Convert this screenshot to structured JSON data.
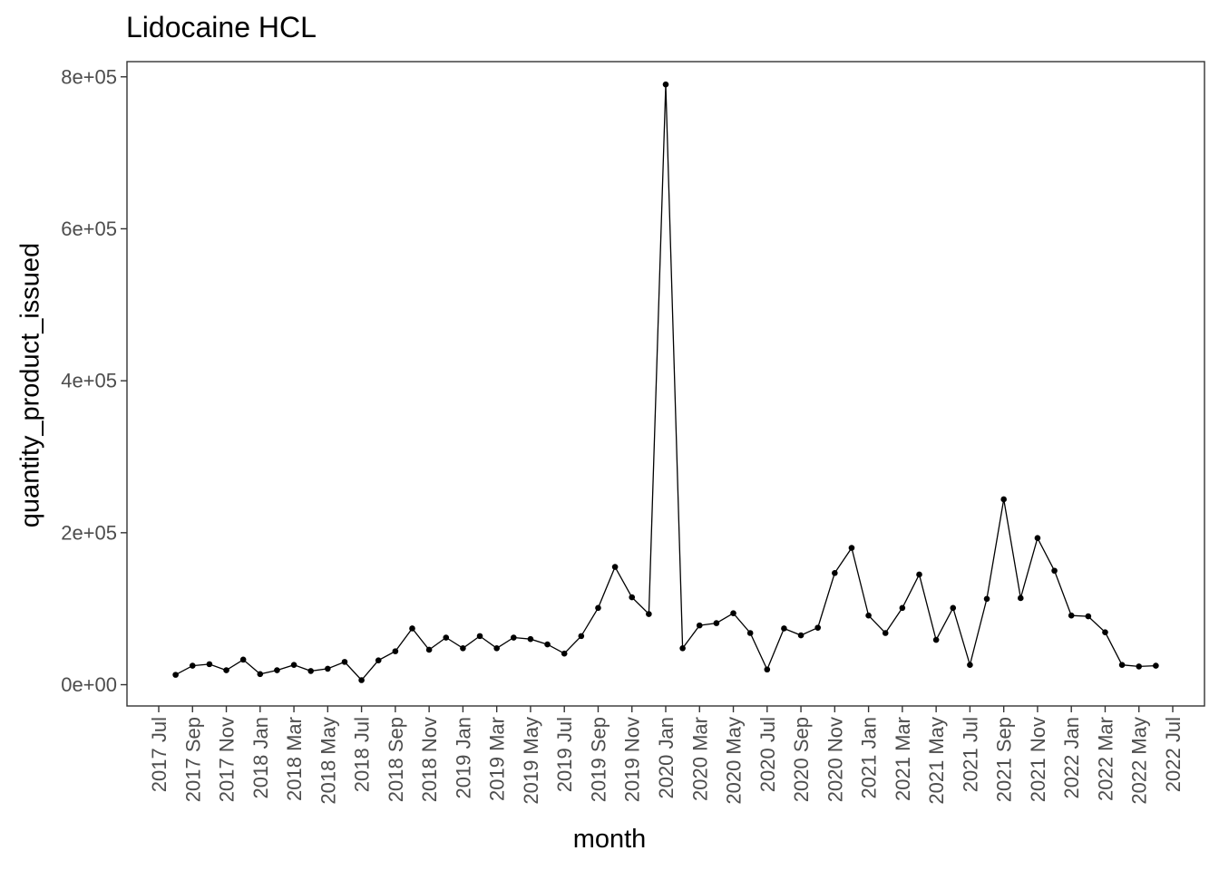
{
  "chart_data": {
    "type": "line",
    "title": "Lidocaine HCL",
    "xlabel": "month",
    "ylabel": "quantity_product_issued",
    "markers": true,
    "grid": false,
    "ylim": [
      -28000,
      820000
    ],
    "y_ticks": [
      0,
      200000,
      400000,
      600000,
      800000
    ],
    "y_tick_labels": [
      "0e+00",
      "2e+05",
      "4e+05",
      "6e+05",
      "8e+05"
    ],
    "x_ticks": [
      "2017-07",
      "2017-09",
      "2017-11",
      "2018-01",
      "2018-03",
      "2018-05",
      "2018-07",
      "2018-09",
      "2018-11",
      "2019-01",
      "2019-03",
      "2019-05",
      "2019-07",
      "2019-09",
      "2019-11",
      "2020-01",
      "2020-03",
      "2020-05",
      "2020-07",
      "2020-09",
      "2020-11",
      "2021-01",
      "2021-03",
      "2021-05",
      "2021-07",
      "2021-09",
      "2021-11",
      "2022-01",
      "2022-03",
      "2022-05",
      "2022-07"
    ],
    "x_tick_labels": [
      "2017 Jul",
      "2017 Sep",
      "2017 Nov",
      "2018 Jan",
      "2018 Mar",
      "2018 May",
      "2018 Jul",
      "2018 Sep",
      "2018 Nov",
      "2019 Jan",
      "2019 Mar",
      "2019 May",
      "2019 Jul",
      "2019 Sep",
      "2019 Nov",
      "2020 Jan",
      "2020 Mar",
      "2020 May",
      "2020 Jul",
      "2020 Sep",
      "2020 Nov",
      "2021 Jan",
      "2021 Mar",
      "2021 May",
      "2021 Jul",
      "2021 Sep",
      "2021 Nov",
      "2022 Jan",
      "2022 Mar",
      "2022 May",
      "2022 Jul"
    ],
    "series": [
      {
        "x": [
          "2017-08",
          "2017-09",
          "2017-10",
          "2017-11",
          "2017-12",
          "2018-01",
          "2018-02",
          "2018-03",
          "2018-04",
          "2018-05",
          "2018-06",
          "2018-07",
          "2018-08",
          "2018-09",
          "2018-10",
          "2018-11",
          "2018-12",
          "2019-01",
          "2019-02",
          "2019-03",
          "2019-04",
          "2019-05",
          "2019-06",
          "2019-07",
          "2019-08",
          "2019-09",
          "2019-10",
          "2019-11",
          "2019-12",
          "2020-01",
          "2020-02",
          "2020-03",
          "2020-04",
          "2020-05",
          "2020-06",
          "2020-07",
          "2020-08",
          "2020-09",
          "2020-10",
          "2020-11",
          "2020-12",
          "2021-01",
          "2021-02",
          "2021-03",
          "2021-04",
          "2021-05",
          "2021-06",
          "2021-07",
          "2021-08",
          "2021-09",
          "2021-10",
          "2021-11",
          "2021-12",
          "2022-01",
          "2022-02",
          "2022-03",
          "2022-04",
          "2022-05",
          "2022-06"
        ],
        "values": [
          13000,
          25000,
          27000,
          19000,
          33000,
          14000,
          19000,
          26000,
          18000,
          21000,
          30000,
          6000,
          32000,
          44000,
          74000,
          46000,
          62000,
          48000,
          64000,
          48000,
          62000,
          60000,
          53000,
          41000,
          64000,
          101000,
          155000,
          115000,
          93000,
          790000,
          48000,
          78000,
          81000,
          94000,
          68000,
          20000,
          74000,
          65000,
          75000,
          147000,
          180000,
          91000,
          68000,
          101000,
          145000,
          59000,
          101000,
          26000,
          113000,
          244000,
          114000,
          193000,
          150000,
          91000,
          90000,
          69000,
          26000,
          24000,
          25000
        ]
      }
    ]
  }
}
